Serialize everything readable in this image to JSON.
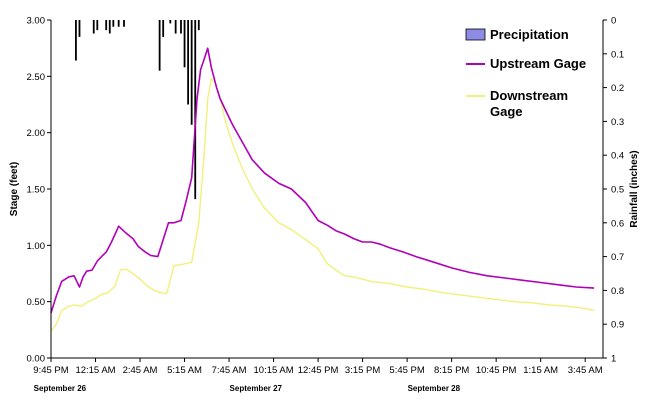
{
  "chart_data": {
    "type": "line",
    "ylabel": "Stage (feet)",
    "y2label": "Rainfall (inches)",
    "ylim": [
      0,
      3
    ],
    "y2lim": [
      1,
      0
    ],
    "y2_inverted": true,
    "yticks": [
      "0.00",
      "0.50",
      "1.00",
      "1.50",
      "2.00",
      "2.50",
      "3.00"
    ],
    "y2ticks": [
      "0",
      "0.1",
      "0.2",
      "0.3",
      "0.4",
      "0.5",
      "0.6",
      "0.7",
      "0.8",
      "0.9",
      "1"
    ],
    "xticks": [
      "9:45 PM",
      "12:15 AM",
      "2:45 AM",
      "5:15 AM",
      "7:45 AM",
      "10:15 AM",
      "12:45 PM",
      "3:15 PM",
      "5:45 PM",
      "8:15 PM",
      "10:45 PM",
      "1:15 AM",
      "3:45 AM"
    ],
    "xlim_hours": [
      0,
      31
    ],
    "date_labels": [
      {
        "text": "September 26",
        "at_hours": 0.5
      },
      {
        "text": "September 27",
        "at_hours": 11.5
      },
      {
        "text": "September 28",
        "at_hours": 21.5
      }
    ],
    "legend_position": "top-right",
    "colors": {
      "upstream": "#b000b8",
      "downstream": "#f2f07a",
      "precip": "#000000",
      "precip_legend": "#8c8ce6",
      "axis": "#000000"
    },
    "series": [
      {
        "name": "Upstream Gage",
        "hours": [
          0,
          0.3,
          0.6,
          1.0,
          1.3,
          1.6,
          1.8,
          2.0,
          2.3,
          2.6,
          2.9,
          3.1,
          3.4,
          3.8,
          4.2,
          4.6,
          4.9,
          5.3,
          5.6,
          6.0,
          6.2,
          6.6,
          6.9,
          7.3,
          7.6,
          7.9,
          8.2,
          8.4,
          8.6,
          8.8,
          9.0,
          9.3,
          9.5,
          9.8,
          10.2,
          10.7,
          11.3,
          12.0,
          12.8,
          13.5,
          14.3,
          15.0,
          15.5,
          16.0,
          16.5,
          17.0,
          17.5,
          18.0,
          18.5,
          19.0,
          19.8,
          20.5,
          21.5,
          22.5,
          23.5,
          24.5,
          25.5,
          26.5,
          27.5,
          28.5,
          29.5,
          30.5
        ],
        "values": [
          0.4,
          0.55,
          0.68,
          0.72,
          0.73,
          0.63,
          0.72,
          0.77,
          0.78,
          0.86,
          0.91,
          0.94,
          1.03,
          1.17,
          1.11,
          1.06,
          0.99,
          0.94,
          0.91,
          0.9,
          1.0,
          1.2,
          1.2,
          1.22,
          1.4,
          1.6,
          2.3,
          2.56,
          2.65,
          2.75,
          2.58,
          2.4,
          2.3,
          2.2,
          2.07,
          1.93,
          1.76,
          1.64,
          1.55,
          1.5,
          1.38,
          1.22,
          1.18,
          1.13,
          1.1,
          1.06,
          1.03,
          1.03,
          1.01,
          0.98,
          0.94,
          0.9,
          0.85,
          0.8,
          0.76,
          0.73,
          0.71,
          0.69,
          0.67,
          0.65,
          0.63,
          0.62
        ]
      },
      {
        "name": "Downstream Gage",
        "hours": [
          0,
          0.3,
          0.6,
          1.0,
          1.3,
          1.7,
          2.0,
          2.4,
          2.8,
          3.2,
          3.6,
          3.9,
          4.2,
          4.6,
          5.0,
          5.4,
          5.8,
          6.2,
          6.5,
          6.9,
          7.3,
          7.6,
          7.9,
          8.3,
          8.6,
          8.8,
          9.0,
          9.2,
          9.5,
          9.8,
          10.2,
          10.7,
          11.3,
          12.0,
          12.8,
          13.5,
          14.3,
          15.0,
          15.5,
          16.0,
          16.5,
          17.0,
          18.0,
          19.0,
          20.0,
          21.0,
          22.0,
          23.0,
          24.0,
          25.0,
          26.0,
          27.0,
          28.0,
          29.0,
          30.0,
          30.5
        ],
        "values": [
          0.24,
          0.3,
          0.42,
          0.46,
          0.47,
          0.46,
          0.49,
          0.52,
          0.56,
          0.58,
          0.64,
          0.78,
          0.79,
          0.75,
          0.7,
          0.64,
          0.6,
          0.58,
          0.57,
          0.82,
          0.83,
          0.84,
          0.85,
          1.2,
          1.8,
          2.3,
          2.48,
          2.45,
          2.3,
          2.1,
          1.9,
          1.7,
          1.5,
          1.33,
          1.2,
          1.14,
          1.05,
          0.97,
          0.84,
          0.78,
          0.73,
          0.72,
          0.68,
          0.66,
          0.63,
          0.61,
          0.58,
          0.56,
          0.54,
          0.52,
          0.5,
          0.49,
          0.47,
          0.46,
          0.44,
          0.42
        ]
      },
      {
        "name": "Precipitation",
        "type": "bar",
        "hours": [
          1.4,
          1.6,
          2.4,
          2.6,
          3.1,
          3.3,
          3.5,
          3.8,
          4.1,
          6.1,
          6.3,
          6.7,
          7.0,
          7.3,
          7.5,
          7.7,
          7.9,
          8.1,
          8.3
        ],
        "values": [
          0.12,
          0.05,
          0.04,
          0.03,
          0.03,
          0.04,
          0.02,
          0.02,
          0.02,
          0.15,
          0.05,
          0.01,
          0.04,
          0.04,
          0.14,
          0.25,
          0.31,
          0.53,
          0.03
        ]
      }
    ]
  }
}
